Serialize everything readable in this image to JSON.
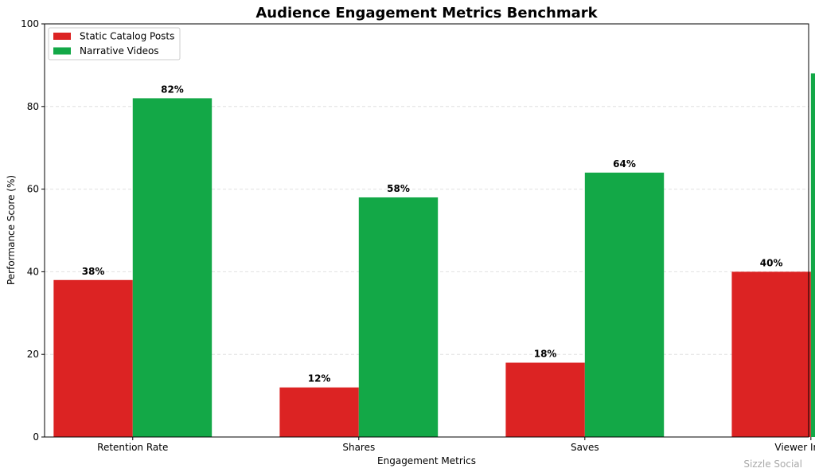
{
  "chart_data": {
    "type": "bar",
    "title": "Audience Engagement Metrics Benchmark",
    "xlabel": "Engagement Metrics",
    "ylabel": "Performance Score (%)",
    "categories": [
      "Retention Rate",
      "Shares",
      "Saves",
      "Viewer Interest"
    ],
    "series": [
      {
        "name": "Static Catalog Posts",
        "values": [
          38,
          12,
          18,
          40
        ],
        "color": "#dc2323"
      },
      {
        "name": "Narrative Videos",
        "values": [
          82,
          58,
          64,
          88
        ],
        "color": "#13a847"
      }
    ],
    "value_suffix": "%",
    "ylim": [
      0,
      100
    ],
    "yticks": [
      0,
      20,
      40,
      60,
      80,
      100
    ],
    "grid": "y-dashed",
    "legend_position": "top-left"
  },
  "watermark": "Sizzle Social"
}
